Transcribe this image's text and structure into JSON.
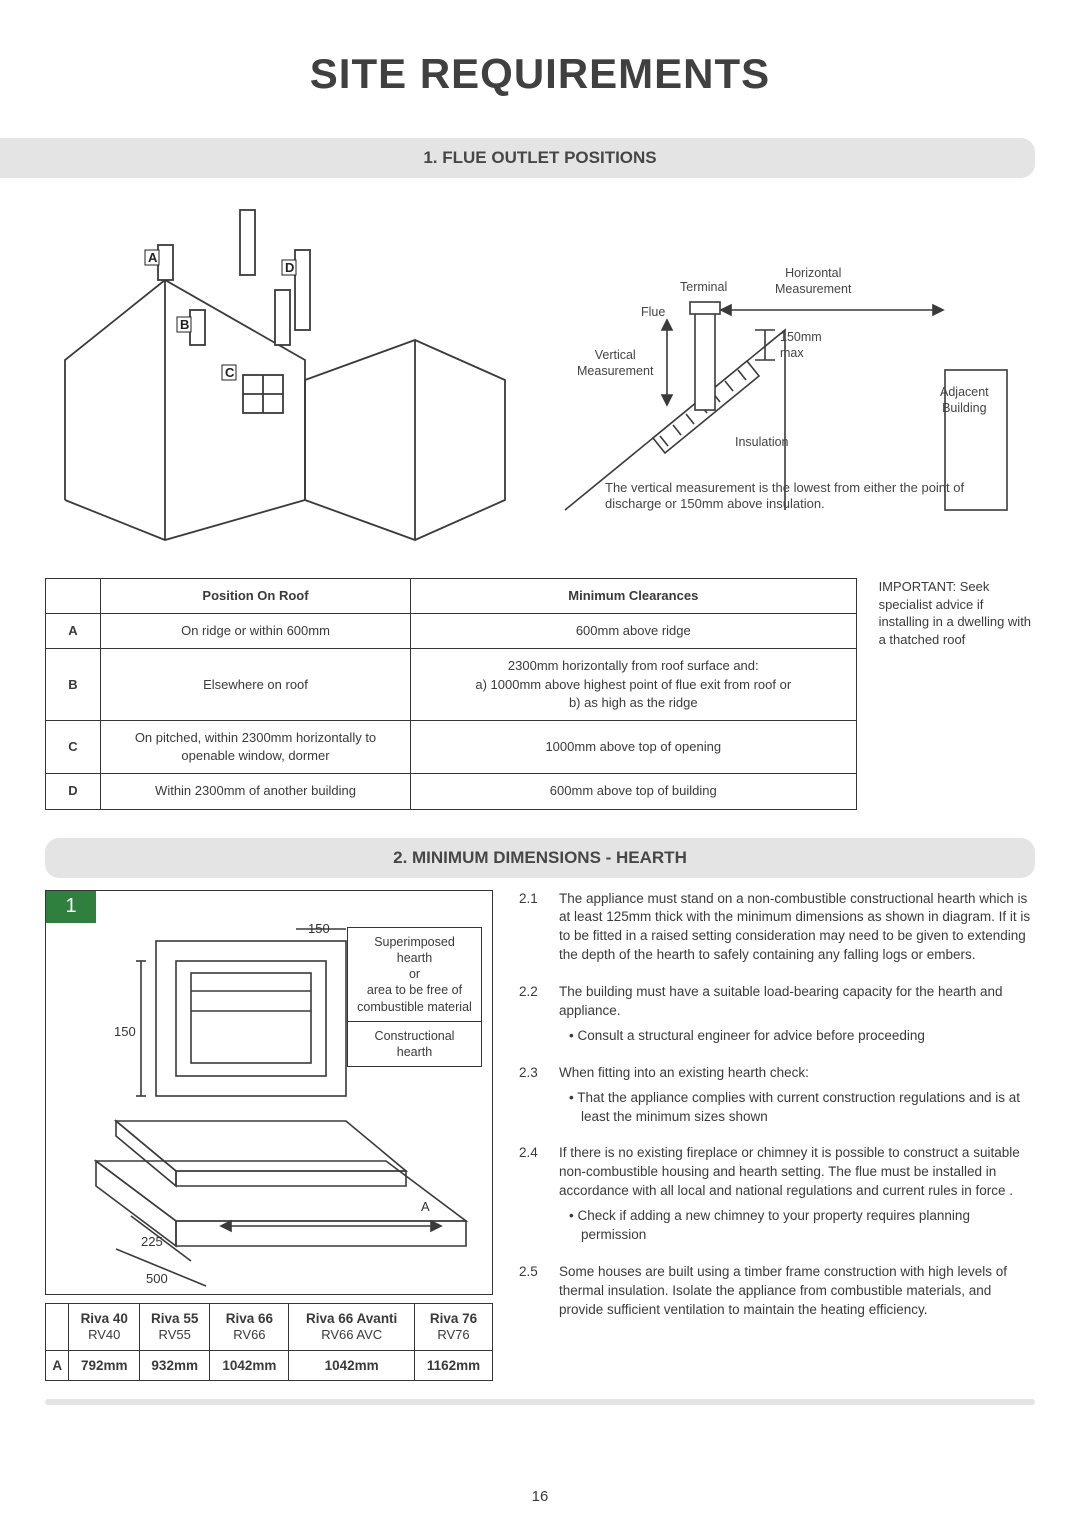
{
  "pageTitle": "SITE REQUIREMENTS",
  "pageNumber": "16",
  "section1": {
    "header": "1. FLUE OUTLET POSITIONS",
    "roofDiagram": {
      "labelA": "A",
      "labelB": "B",
      "labelC": "C",
      "labelD": "D"
    },
    "flueDiagram": {
      "terminal": "Terminal",
      "flue": "Flue",
      "horizontal": "Horizontal\nMeasurement",
      "vertical": "Vertical\nMeasurement",
      "insulation": "Insulation",
      "adjacent": "Adjacent\nBuilding",
      "clearance": "150mm\nmax",
      "caption": "The vertical measurement is the lowest from either the point of discharge or 150mm above insulation."
    },
    "table": {
      "headers": [
        "",
        "Position On Roof",
        "Minimum Clearances"
      ],
      "rows": [
        [
          "A",
          "On ridge or within 600mm",
          "600mm above ridge"
        ],
        [
          "B",
          "Elsewhere on roof",
          "2300mm horizontally from roof surface and:\na) 1000mm above highest point of flue exit from roof or\nb) as high as the ridge"
        ],
        [
          "C",
          "On pitched, within 2300mm horizontally to openable window, dormer",
          "1000mm above top of opening"
        ],
        [
          "D",
          "Within 2300mm of another building",
          "600mm above top of building"
        ]
      ]
    },
    "sideNote": "IMPORTANT: Seek specialist advice if installing in a dwelling with a thatched roof"
  },
  "section2": {
    "header": "2. MINIMUM DIMENSIONS - HEARTH",
    "figureBadge": "1",
    "figureLabels": {
      "top150": "150",
      "side150": "150",
      "d225": "225",
      "d500": "500",
      "dimA": "A",
      "box1": "Superimposed hearth\nor\narea to be free of\ncombustible material",
      "box2": "Constructional hearth"
    },
    "hearthTable": {
      "headers": [
        {
          "main": "",
          "sub": ""
        },
        {
          "main": "Riva 40",
          "sub": "RV40"
        },
        {
          "main": "Riva 55",
          "sub": "RV55"
        },
        {
          "main": "Riva 66",
          "sub": "RV66"
        },
        {
          "main": "Riva 66 Avanti",
          "sub": "RV66 AVC"
        },
        {
          "main": "Riva 76",
          "sub": "RV76"
        }
      ],
      "rowLabel": "A",
      "values": [
        "792mm",
        "932mm",
        "1042mm",
        "1042mm",
        "1162mm"
      ]
    },
    "paragraphs": [
      {
        "n": "2.1",
        "body": "The appliance must stand on a non-combustible constructional hearth which is at least 125mm thick with the minimum dimensions as shown in diagram. If it is to be fitted in a raised setting consideration may need to be given to extending the depth of the hearth to safely containing any falling logs or embers."
      },
      {
        "n": "2.2",
        "body": "The building must have a suitable load-bearing capacity for the hearth and appliance.",
        "bullets": [
          "• Consult a structural engineer for advice before proceeding"
        ]
      },
      {
        "n": "2.3",
        "body": "When fitting into an existing hearth check:",
        "bullets": [
          "• That the appliance complies with current construction regulations and is at least the minimum sizes shown"
        ]
      },
      {
        "n": "2.4",
        "body": "If there is no existing fireplace or chimney it is possible to construct a suitable non-combustible housing and hearth setting. The flue must be installed in accordance with all local and national regulations and current rules in force .",
        "bullets": [
          "• Check if adding a new chimney to your property requires planning permission"
        ]
      },
      {
        "n": "2.5",
        "body": " Some houses are built using a timber frame construction with high levels of thermal insulation. Isolate the appliance from combustible materials, and provide sufficient ventilation to maintain the heating efficiency."
      }
    ]
  },
  "colors": {
    "sectionBg": "#e4e4e4",
    "border": "#353535",
    "badge": "#2f7f3e",
    "text": "#3a3a3a"
  }
}
